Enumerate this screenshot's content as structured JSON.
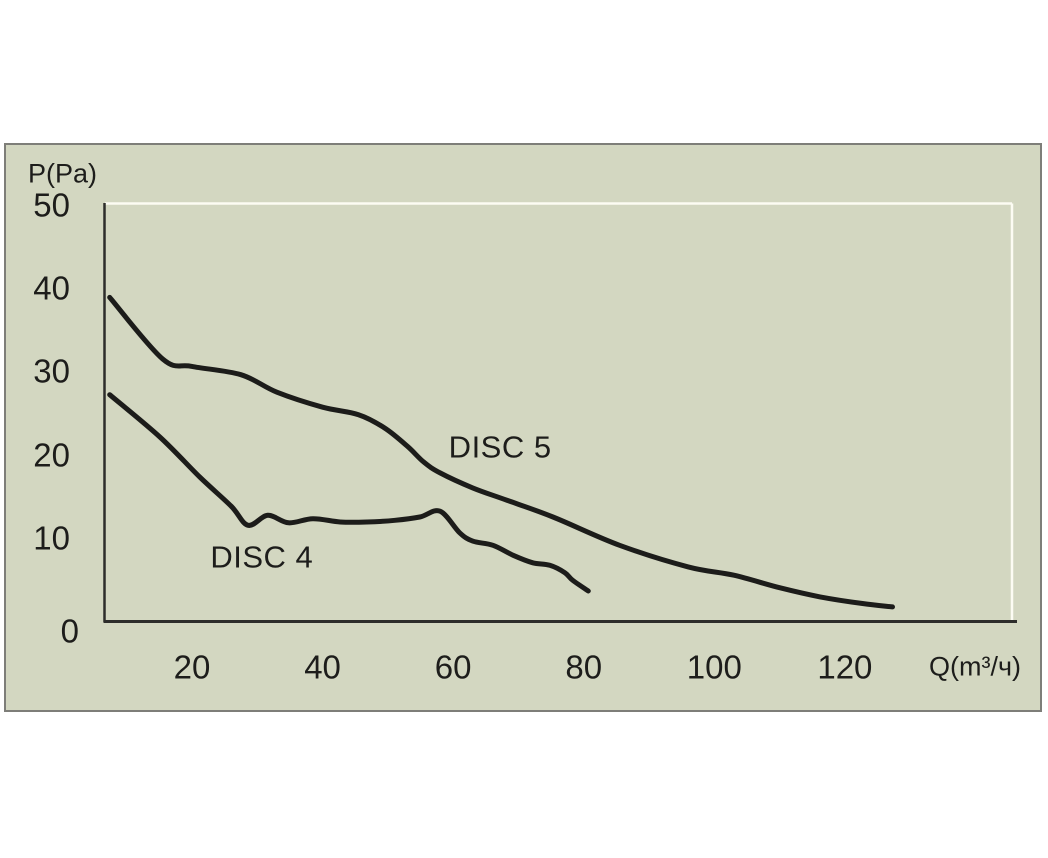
{
  "figure": {
    "background": "#ffffff"
  },
  "panel": {
    "background": "#d3d7c1",
    "border_color": "#7e7e79",
    "frame_highlight_color": "#fcfcf3",
    "axis_color": "#2d2d2b",
    "text_color": "#1d1d1b"
  },
  "chart_data": {
    "type": "line",
    "title": "",
    "xlabel": "Q(m³/ч)",
    "ylabel": "P(Pa)",
    "xlim": [
      0,
      145
    ],
    "ylim": [
      0,
      50
    ],
    "x_ticks": [
      20,
      40,
      60,
      80,
      100,
      120
    ],
    "y_ticks": [
      50,
      40,
      30,
      20,
      10,
      0
    ],
    "grid": false,
    "legend": "inline labels next to curves",
    "curve_color": "#1c1c1a",
    "series": [
      {
        "name": "DISC 5",
        "label_at": [
          67.2,
          20.9
        ],
        "points": [
          [
            7.4,
            38.9
          ],
          [
            15.5,
            31.5
          ],
          [
            20,
            30.6
          ],
          [
            27.5,
            29.6
          ],
          [
            33,
            27.5
          ],
          [
            40,
            25.7
          ],
          [
            45.5,
            24.8
          ],
          [
            49.5,
            23.2
          ],
          [
            53,
            21.0
          ],
          [
            55.5,
            19.1
          ],
          [
            58,
            17.8
          ],
          [
            63,
            16.0
          ],
          [
            68.3,
            14.5
          ],
          [
            75.3,
            12.5
          ],
          [
            85.5,
            9.1
          ],
          [
            96,
            6.5
          ],
          [
            103,
            5.5
          ],
          [
            110,
            4.0
          ],
          [
            116.2,
            2.9
          ],
          [
            122.7,
            2.1
          ],
          [
            127.3,
            1.7
          ]
        ]
      },
      {
        "name": "DISC 4",
        "label_at": [
          30.7,
          7.7
        ],
        "points": [
          [
            7.4,
            27.2
          ],
          [
            15.1,
            22.1
          ],
          [
            21.2,
            17.3
          ],
          [
            26,
            13.8
          ],
          [
            28.6,
            11.5
          ],
          [
            31.6,
            12.7
          ],
          [
            34.8,
            11.8
          ],
          [
            38.5,
            12.3
          ],
          [
            42.7,
            11.9
          ],
          [
            46.8,
            11.9
          ],
          [
            51.1,
            12.1
          ],
          [
            54.9,
            12.5
          ],
          [
            58,
            13.2
          ],
          [
            61,
            10.6
          ],
          [
            63,
            9.6
          ],
          [
            66.1,
            9.1
          ],
          [
            69.2,
            7.9
          ],
          [
            72.2,
            7.0
          ],
          [
            74.8,
            6.7
          ],
          [
            77.1,
            5.8
          ],
          [
            78.3,
            4.9
          ],
          [
            80.7,
            3.6
          ]
        ]
      }
    ]
  }
}
